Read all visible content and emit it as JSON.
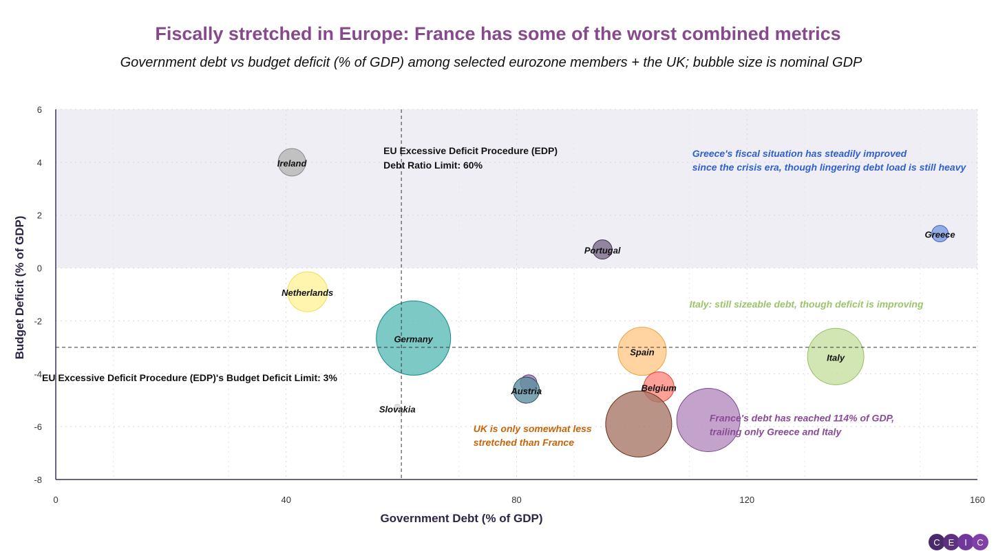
{
  "chart_data": {
    "type": "scatter",
    "title": "Fiscally stretched in Europe: France has some of the worst combined metrics",
    "subtitle": "Government debt vs budget deficit (% of GDP) among selected eurozone members + the UK; bubble size is nominal GDP",
    "xlabel": "Government Debt (% of GDP)",
    "ylabel": "Budget Deficit (% of GDP)",
    "xlim": [
      0,
      160
    ],
    "ylim": [
      -8,
      6
    ],
    "xticks": [
      0,
      40,
      80,
      120,
      160
    ],
    "yticks": [
      -8,
      -6,
      -4,
      -2,
      0,
      2,
      4,
      6
    ],
    "grid": true,
    "shaded_region": {
      "y_from": 0,
      "y_to": 6,
      "color": "#efeef4"
    },
    "points": [
      {
        "name": "Ireland",
        "x": 41.0,
        "y": 4.0,
        "size": 20,
        "color": "#b5b5b5",
        "stroke": "#8a8a8a"
      },
      {
        "name": "Netherlands",
        "x": 43.7,
        "y": -0.9,
        "size": 29,
        "color": "#fff29a",
        "stroke": "#f2dc5a"
      },
      {
        "name": "Germany",
        "x": 62.1,
        "y": -2.65,
        "size": 54,
        "color": "#5bbcb8",
        "stroke": "#138a86"
      },
      {
        "name": "Portugal",
        "x": 94.9,
        "y": 0.7,
        "size": 14,
        "color": "#7a6a8a",
        "stroke": "#3e2f52"
      },
      {
        "name": "Greece",
        "x": 153.5,
        "y": 1.3,
        "size": 12,
        "color": "#7c9be0",
        "stroke": "#3e64c4"
      },
      {
        "name": "Spain",
        "x": 101.8,
        "y": -3.15,
        "size": 35,
        "color": "#ffc98a",
        "stroke": "#f0a040"
      },
      {
        "name": "Italy",
        "x": 135.4,
        "y": -3.35,
        "size": 41,
        "color": "#c6e0a0",
        "stroke": "#93c062"
      },
      {
        "name": "Belgium",
        "x": 104.7,
        "y": -4.5,
        "size": 22,
        "color": "#ff8a80",
        "stroke": "#e0453a"
      },
      {
        "name": "",
        "x": 82.1,
        "y": -4.35,
        "size": 12,
        "color": "#9a7aae",
        "stroke": "#6a3a82"
      },
      {
        "name": "Austria",
        "x": 81.7,
        "y": -4.62,
        "size": 19,
        "color": "#5e8fa0",
        "stroke": "#2a4a5a"
      },
      {
        "name": "Slovakia",
        "x": 59.3,
        "y": -5.25,
        "size": 4,
        "color": "#dddddd",
        "stroke": "#cccccc"
      },
      {
        "name": "",
        "x": 101.2,
        "y": -5.9,
        "size": 48,
        "color": "#a67868",
        "stroke": "#6a3018"
      },
      {
        "name": "",
        "x": 113.3,
        "y": -5.75,
        "size": 46,
        "color": "#b48cbe",
        "stroke": "#7a4a8a"
      }
    ],
    "reference_lines": [
      {
        "axis": "x",
        "value": 60,
        "label_lines": [
          "EU Excessive Deficit Procedure (EDP)",
          "Debt Ratio Limit: 60%"
        ]
      },
      {
        "axis": "y",
        "value": -3,
        "label_lines": [
          "EU Excessive Deficit Procedure (EDP)'s Budget Deficit Limit: 3%"
        ]
      }
    ],
    "annotations": [
      {
        "lines": [
          "Greece's fiscal situation has steadily improved",
          "since the crisis era, though lingering debt load is still heavy"
        ],
        "x": 110.5,
        "y": 4.2,
        "color": "#2f5fd0"
      },
      {
        "lines": [
          "Italy: still sizeable debt, though deficit is improving"
        ],
        "x": 110,
        "y": -1.5,
        "color": "#9cc46a"
      },
      {
        "lines": [
          "France's debt has reached 114% of GDP,",
          "trailing only Greece and Italy"
        ],
        "x": 113.5,
        "y": -5.8,
        "color": "#8a4a98"
      },
      {
        "lines": [
          "UK is only somewhat less",
          "stretched than France"
        ],
        "x": 72.5,
        "y": -6.2,
        "color": "#c8640a"
      }
    ]
  },
  "logo": {
    "letters": [
      "C",
      "E",
      "I",
      "C"
    ],
    "colors": [
      "#4a2a6a",
      "#5e3080",
      "#70389a",
      "#8040a8"
    ]
  }
}
